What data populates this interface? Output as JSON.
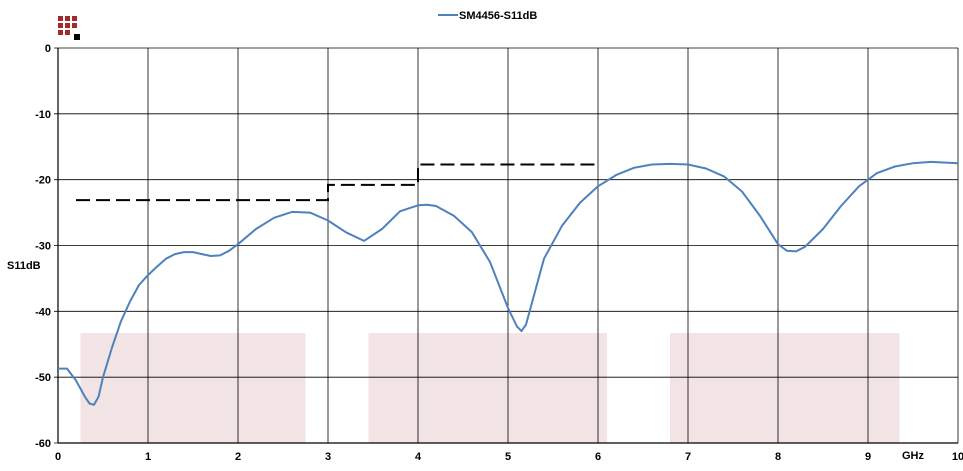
{
  "chart_data": {
    "type": "line",
    "title": "",
    "xlabel": "GHz",
    "ylabel": "S11dB",
    "xlim": [
      0,
      10
    ],
    "ylim": [
      -60,
      0
    ],
    "x_ticks": [
      "0",
      "1",
      "2",
      "3",
      "4",
      "5",
      "6",
      "7",
      "8",
      "9",
      "10"
    ],
    "y_ticks": [
      "0",
      "-10",
      "-20",
      "-30",
      "-40",
      "-50",
      "-60"
    ],
    "grid": true,
    "legend_position": "top-center",
    "series": [
      {
        "name": "SM4456-S11dB",
        "color": "#4f81bd",
        "x": [
          0.0,
          0.1,
          0.2,
          0.3,
          0.35,
          0.4,
          0.45,
          0.5,
          0.6,
          0.7,
          0.8,
          0.9,
          1.0,
          1.1,
          1.2,
          1.3,
          1.4,
          1.5,
          1.6,
          1.7,
          1.8,
          1.9,
          2.0,
          2.2,
          2.4,
          2.6,
          2.8,
          3.0,
          3.2,
          3.4,
          3.6,
          3.8,
          4.0,
          4.1,
          4.2,
          4.4,
          4.6,
          4.8,
          4.9,
          5.0,
          5.1,
          5.15,
          5.2,
          5.3,
          5.4,
          5.6,
          5.8,
          6.0,
          6.2,
          6.4,
          6.6,
          6.8,
          7.0,
          7.2,
          7.4,
          7.6,
          7.8,
          8.0,
          8.1,
          8.2,
          8.3,
          8.5,
          8.7,
          8.9,
          9.1,
          9.3,
          9.5,
          9.7,
          10.0
        ],
        "y": [
          -48.7,
          -48.7,
          -50.5,
          -53.0,
          -54.0,
          -54.2,
          -53.0,
          -50.0,
          -45.5,
          -41.5,
          -38.5,
          -36.0,
          -34.5,
          -33.2,
          -32.0,
          -31.3,
          -31.0,
          -31.0,
          -31.3,
          -31.6,
          -31.5,
          -30.8,
          -29.8,
          -27.5,
          -25.8,
          -24.9,
          -25.0,
          -26.2,
          -28.0,
          -29.3,
          -27.5,
          -24.8,
          -23.9,
          -23.8,
          -24.0,
          -25.5,
          -28.0,
          -32.5,
          -36.0,
          -39.5,
          -42.3,
          -43.0,
          -42.0,
          -37.0,
          -32.0,
          -27.0,
          -23.5,
          -21.0,
          -19.3,
          -18.2,
          -17.7,
          -17.6,
          -17.7,
          -18.3,
          -19.5,
          -21.8,
          -25.5,
          -29.8,
          -30.8,
          -30.9,
          -30.2,
          -27.5,
          -24.0,
          -21.0,
          -19.0,
          -18.0,
          -17.5,
          -17.3,
          -17.5
        ]
      }
    ],
    "limit_line": {
      "style": "dashed",
      "color": "#000000",
      "segments": [
        {
          "x": [
            0.2,
            3.0
          ],
          "y": -23.1
        },
        {
          "x": [
            3.0,
            4.0
          ],
          "y": -20.8
        },
        {
          "x": [
            4.0,
            6.0
          ],
          "y": -17.7
        }
      ]
    },
    "shaded_bands": {
      "color": "#f2e4e4",
      "y_range": [
        -60,
        -43.3
      ],
      "x_ranges": [
        [
          0.25,
          2.75
        ],
        [
          3.45,
          6.1
        ],
        [
          6.8,
          9.35
        ]
      ]
    }
  }
}
